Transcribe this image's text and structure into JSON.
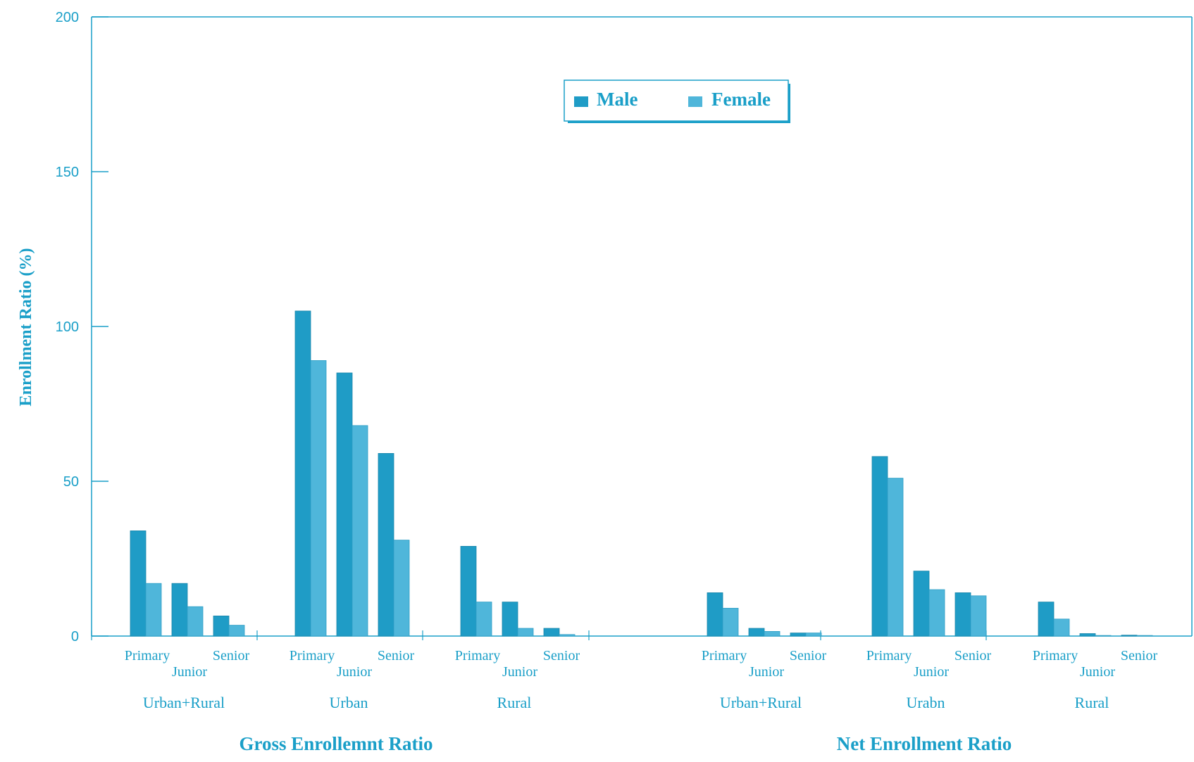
{
  "chart_data": {
    "type": "bar",
    "ylabel": "Enrollment Ratio (%)",
    "ylim": [
      0,
      200
    ],
    "yticks": [
      "0",
      "50",
      "100",
      "150",
      "200"
    ],
    "legend": {
      "placement": "top-center",
      "entries": [
        "Male",
        "Female"
      ]
    },
    "colors": {
      "Male": "#1f9cc6",
      "Female": "#4fb6da",
      "axis": "#1a9fc8"
    },
    "sections": [
      {
        "label": "Gross Enrollemnt Ratio",
        "groups": [
          {
            "label": "Urban+Rural",
            "levels": [
              "Primary",
              "Junior",
              "Senior"
            ],
            "Male": [
              34,
              17,
              6.5
            ],
            "Female": [
              17,
              9.5,
              3.5
            ]
          },
          {
            "label": "Urban",
            "levels": [
              "Primary",
              "Junior",
              "Senior"
            ],
            "Male": [
              105,
              85,
              59
            ],
            "Female": [
              89,
              68,
              31
            ]
          },
          {
            "label": "Rural",
            "levels": [
              "Primary",
              "Junior",
              "Senior"
            ],
            "Male": [
              29,
              11,
              2.5
            ],
            "Female": [
              11,
              2.5,
              0.5
            ]
          }
        ]
      },
      {
        "label": "Net Enrollment Ratio",
        "groups": [
          {
            "label": "Urban+Rural",
            "levels": [
              "Primary",
              "Junior",
              "Senior"
            ],
            "Male": [
              14,
              2.5,
              1
            ],
            "Female": [
              9,
              1.5,
              1
            ]
          },
          {
            "label": "Urabn",
            "levels": [
              "Primary",
              "Junior",
              "Senior"
            ],
            "Male": [
              58,
              21,
              14
            ],
            "Female": [
              51,
              15,
              13
            ]
          },
          {
            "label": "Rural",
            "levels": [
              "Primary",
              "Junior",
              "Senior"
            ],
            "Male": [
              11,
              0.8,
              0.3
            ],
            "Female": [
              5.5,
              0.2,
              0.2
            ]
          }
        ]
      }
    ]
  }
}
